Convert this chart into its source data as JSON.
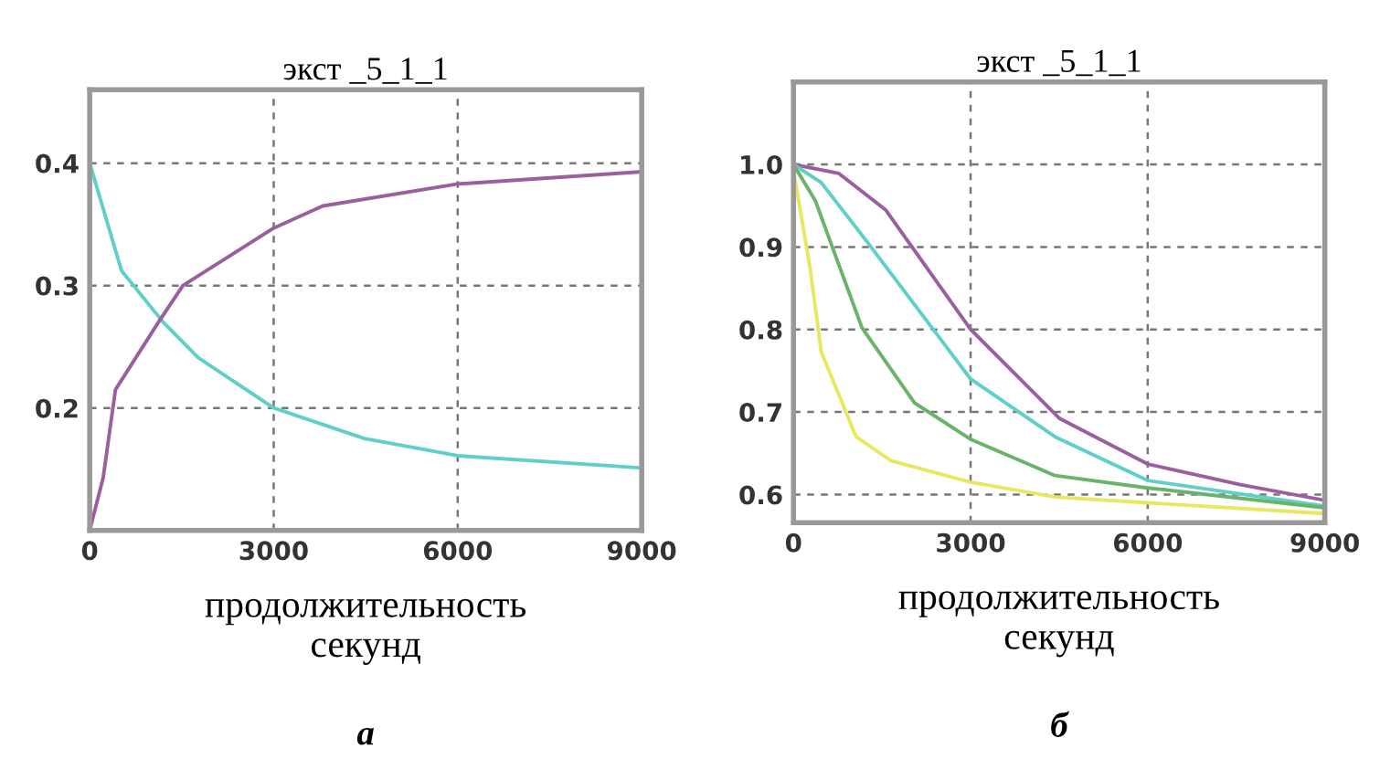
{
  "chart_data": [
    {
      "type": "line",
      "title": "экст _5_1_1",
      "xlabel": "продолжительность\nсекунд",
      "annotations": [
        "а"
      ],
      "xlim": [
        0,
        9000
      ],
      "ylim": [
        0.1,
        0.46
      ],
      "xticks": [
        0,
        3000,
        6000,
        9000
      ],
      "yticks": [
        0.2,
        0.3,
        0.4
      ],
      "grid": true,
      "marker": "none",
      "line_style": "solid",
      "series": [
        {
          "color": "#5fd0c8",
          "x": [
            0,
            520,
            1200,
            1770,
            3000,
            4480,
            6000,
            9000
          ],
          "values": [
            0.4,
            0.312,
            0.27,
            0.241,
            0.2,
            0.175,
            0.161,
            0.151
          ]
        },
        {
          "color": "#9b5e9e",
          "x": [
            0,
            220,
            420,
            1120,
            1520,
            3000,
            3800,
            6000,
            9000
          ],
          "values": [
            0.1,
            0.143,
            0.215,
            0.27,
            0.3,
            0.347,
            0.365,
            0.383,
            0.393
          ]
        }
      ]
    },
    {
      "type": "line",
      "title": "экст _5_1_1",
      "xlabel": "продолжительность\nсекунд",
      "annotations": [
        "б"
      ],
      "xlim": [
        0,
        9000
      ],
      "ylim": [
        0.566,
        1.1
      ],
      "xticks": [
        0,
        3000,
        6000,
        9000
      ],
      "yticks": [
        {
          "value": 0.6,
          "label": "0.6"
        },
        {
          "value": 0.7,
          "label": "0.7"
        },
        {
          "value": 0.8,
          "label": "0.8"
        },
        {
          "value": 0.9,
          "label": "0.9"
        },
        {
          "value": 1.0,
          "label": "1.0"
        }
      ],
      "grid": true,
      "marker": "none",
      "line_style": "solid",
      "series": [
        {
          "color": "#9b5e9e",
          "x": [
            0,
            770,
            1560,
            3000,
            4510,
            6000,
            7570,
            9000
          ],
          "values": [
            1.0,
            0.989,
            0.945,
            0.8,
            0.692,
            0.637,
            0.612,
            0.593
          ]
        },
        {
          "color": "#5fd0c8",
          "x": [
            0,
            470,
            1260,
            3000,
            4430,
            6000,
            9000
          ],
          "values": [
            1.0,
            0.978,
            0.905,
            0.74,
            0.67,
            0.617,
            0.586
          ]
        },
        {
          "color": "#6ab46a",
          "x": [
            0,
            370,
            1160,
            2050,
            3000,
            4430,
            6000,
            9000
          ],
          "values": [
            1.0,
            0.956,
            0.802,
            0.711,
            0.667,
            0.623,
            0.608,
            0.584
          ]
        },
        {
          "color": "#e8e860",
          "x": [
            0,
            280,
            470,
            1060,
            1650,
            3000,
            4430,
            6000,
            9000
          ],
          "values": [
            0.993,
            0.875,
            0.773,
            0.67,
            0.641,
            0.615,
            0.597,
            0.59,
            0.577
          ]
        }
      ]
    }
  ]
}
